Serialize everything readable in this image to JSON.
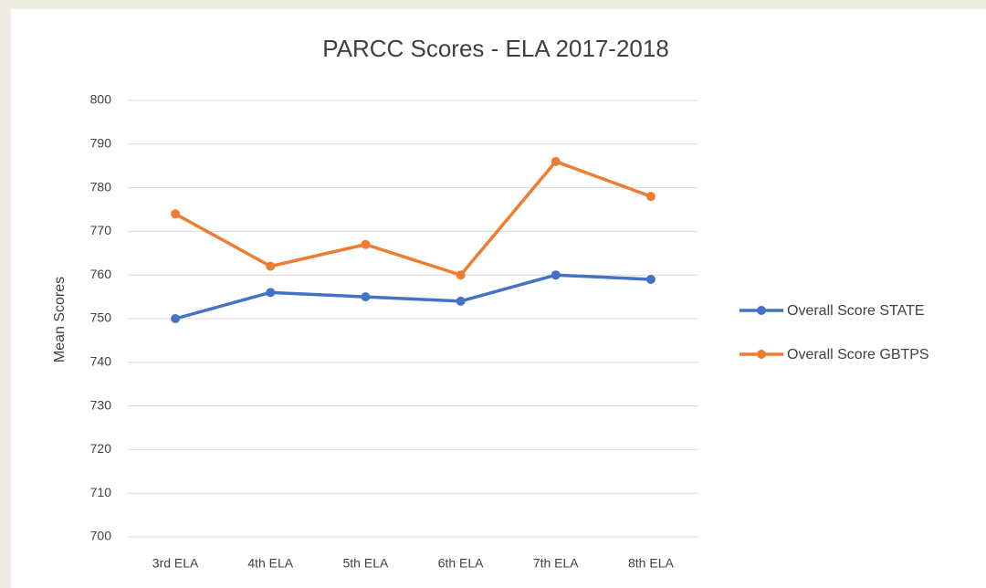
{
  "chart_data": {
    "type": "line",
    "title": "PARCC Scores - ELA 2017-2018",
    "y_label": "Mean Scores",
    "categories": [
      "3rd ELA",
      "4th ELA",
      "5th ELA",
      "6th ELA",
      "7th ELA",
      "8th ELA"
    ],
    "series": [
      {
        "name": "Overall Score STATE",
        "color": "#4472c4",
        "values": [
          750,
          756,
          755,
          754,
          760,
          759
        ]
      },
      {
        "name": "Overall Score GBTPS",
        "color": "#ed7d31",
        "values": [
          774,
          762,
          767,
          760,
          786,
          778
        ]
      }
    ],
    "ylim": [
      700,
      800
    ],
    "yticks": [
      700,
      710,
      720,
      730,
      740,
      750,
      760,
      770,
      780,
      790,
      800
    ],
    "grid": true,
    "legend": "right"
  }
}
